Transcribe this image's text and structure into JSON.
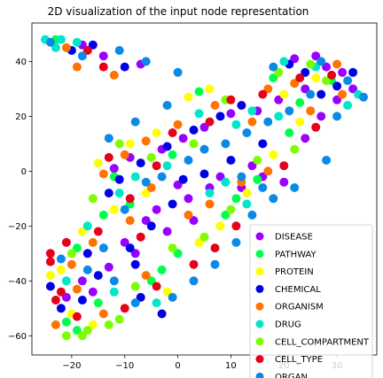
{
  "chart_data": {
    "type": "scatter",
    "title": "2D visualization of the input node representation",
    "xlabel": "",
    "ylabel": "",
    "xlim": [
      -27.5,
      37.5
    ],
    "ylim": [
      -67,
      54
    ],
    "xticks": [
      -20,
      -10,
      0,
      10,
      20,
      30
    ],
    "yticks": [
      -60,
      -40,
      -20,
      0,
      20,
      40
    ],
    "grid": false,
    "legend_position": "lower-right",
    "series": [
      {
        "name": "DISEASE",
        "color": "#9900ff",
        "points": [
          [
            22,
            41
          ],
          [
            26,
            42
          ],
          [
            28,
            38
          ],
          [
            31,
            36
          ],
          [
            24,
            30
          ],
          [
            19,
            26
          ],
          [
            15,
            22
          ],
          [
            10,
            21
          ],
          [
            5,
            16
          ],
          [
            1,
            12
          ],
          [
            -3,
            8
          ],
          [
            -9,
            5
          ],
          [
            -12,
            1
          ],
          [
            -18,
            46
          ],
          [
            -14,
            42
          ],
          [
            -7,
            39
          ],
          [
            8,
            -2
          ],
          [
            12,
            -6
          ],
          [
            3,
            -18
          ],
          [
            -2,
            -22
          ],
          [
            -8,
            -30
          ],
          [
            -13,
            -35
          ],
          [
            -18,
            -40
          ],
          [
            -21,
            -46
          ],
          [
            -4,
            -14
          ],
          [
            2,
            -10
          ],
          [
            6,
            -6
          ],
          [
            16,
            -2
          ],
          [
            20,
            -4
          ],
          [
            24,
            12
          ],
          [
            27,
            20
          ],
          [
            30,
            26
          ],
          [
            33,
            30
          ],
          [
            -16,
            -44
          ],
          [
            -10,
            -26
          ],
          [
            -6,
            -18
          ],
          [
            14,
            2
          ],
          [
            0,
            -5
          ]
        ]
      },
      {
        "name": "PATHWAY",
        "color": "#00ff4c",
        "points": [
          [
            18,
            34
          ],
          [
            23,
            25
          ],
          [
            4,
            29
          ],
          [
            -1,
            6
          ],
          [
            -12,
            -2
          ],
          [
            -14,
            -16
          ],
          [
            -19,
            -28
          ],
          [
            -15,
            -48
          ],
          [
            -19,
            -58
          ],
          [
            -21,
            -55
          ],
          [
            -5,
            -40
          ],
          [
            0,
            -30
          ],
          [
            9,
            -16
          ],
          [
            11,
            -10
          ],
          [
            15,
            -3
          ],
          [
            21,
            14
          ],
          [
            29,
            33
          ],
          [
            -23,
            48
          ],
          [
            -9,
            -12
          ],
          [
            -3,
            -36
          ]
        ]
      },
      {
        "name": "PROTEIN",
        "color": "#ffff00",
        "points": [
          [
            20,
            28
          ],
          [
            26,
            34
          ],
          [
            6,
            30
          ],
          [
            2,
            27
          ],
          [
            -4,
            14
          ],
          [
            -9,
            10
          ],
          [
            -15,
            3
          ],
          [
            -12,
            -14
          ],
          [
            -18,
            -22
          ],
          [
            -22,
            -36
          ],
          [
            -20,
            -52
          ],
          [
            -16,
            -56
          ],
          [
            -2,
            -44
          ],
          [
            4,
            -26
          ],
          [
            8,
            -20
          ],
          [
            13,
            -8
          ],
          [
            18,
            6
          ],
          [
            23,
            18
          ],
          [
            -6,
            -8
          ],
          [
            -24,
            -38
          ]
        ]
      },
      {
        "name": "CHEMICAL",
        "color": "#0000e6",
        "points": [
          [
            21,
            39
          ],
          [
            24,
            36
          ],
          [
            30,
            31
          ],
          [
            12,
            24
          ],
          [
            8,
            20
          ],
          [
            3,
            15
          ],
          [
            -2,
            9
          ],
          [
            -7,
            3
          ],
          [
            -11,
            -3
          ],
          [
            -13,
            -8
          ],
          [
            -20,
            44
          ],
          [
            -16,
            46
          ],
          [
            -10,
            38
          ],
          [
            -1,
            -12
          ],
          [
            -5,
            -20
          ],
          [
            -9,
            -28
          ],
          [
            -15,
            -38
          ],
          [
            -18,
            -47
          ],
          [
            -22,
            -50
          ],
          [
            -24,
            -42
          ],
          [
            -7,
            -46
          ],
          [
            -3,
            -52
          ],
          [
            1,
            -3
          ],
          [
            5,
            -1
          ],
          [
            10,
            4
          ],
          [
            16,
            10
          ],
          [
            27,
            28
          ],
          [
            33,
            36
          ],
          [
            -8,
            -34
          ],
          [
            -17,
            -30
          ]
        ]
      },
      {
        "name": "ORGANISM",
        "color": "#ff7300",
        "points": [
          [
            17,
            30
          ],
          [
            22,
            32
          ],
          [
            30,
            39
          ],
          [
            14,
            18
          ],
          [
            7,
            24
          ],
          [
            0,
            17
          ],
          [
            -6,
            11
          ],
          [
            -10,
            6
          ],
          [
            -14,
            -1
          ],
          [
            -21,
            45
          ],
          [
            -19,
            38
          ],
          [
            -12,
            35
          ],
          [
            -5,
            -6
          ],
          [
            -9,
            -18
          ],
          [
            -16,
            -26
          ],
          [
            -20,
            -34
          ],
          [
            -19,
            -43
          ],
          [
            -14,
            -52
          ],
          [
            -23,
            -56
          ],
          [
            -6,
            -38
          ],
          [
            2,
            -16
          ],
          [
            6,
            -12
          ],
          [
            12,
            -4
          ],
          [
            17,
            0
          ],
          [
            25,
            22
          ],
          [
            31,
            28
          ]
        ]
      },
      {
        "name": "DRUG",
        "color": "#00e6c8",
        "points": [
          [
            -25,
            48
          ],
          [
            -22,
            48
          ],
          [
            -19,
            47
          ],
          [
            -23,
            45
          ],
          [
            20,
            40
          ],
          [
            26,
            38
          ],
          [
            34,
            28
          ],
          [
            32,
            24
          ],
          [
            14,
            22
          ],
          [
            11,
            17
          ],
          [
            4,
            21
          ],
          [
            -2,
            2
          ],
          [
            -8,
            -2
          ],
          [
            9,
            -4
          ],
          [
            13,
            -12
          ],
          [
            -11,
            -8
          ],
          [
            -17,
            -20
          ],
          [
            -21,
            -40
          ],
          [
            -12,
            -44
          ],
          [
            -4,
            -48
          ],
          [
            6,
            -8
          ],
          [
            19,
            20
          ]
        ]
      },
      {
        "name": "CELL_COMPARTMENT",
        "color": "#7bff00",
        "points": [
          [
            19,
            36
          ],
          [
            25,
            39
          ],
          [
            28,
            33
          ],
          [
            9,
            26
          ],
          [
            3,
            10
          ],
          [
            -5,
            5
          ],
          [
            -11,
            10
          ],
          [
            -16,
            -10
          ],
          [
            -20,
            -30
          ],
          [
            -17,
            -58
          ],
          [
            -13,
            -56
          ],
          [
            -11,
            -54
          ],
          [
            -1,
            -28
          ],
          [
            5,
            -24
          ],
          [
            10,
            -14
          ],
          [
            15,
            4
          ],
          [
            22,
            8
          ],
          [
            -8,
            -42
          ],
          [
            -21,
            -60
          ],
          [
            -18,
            -60
          ]
        ]
      },
      {
        "name": "CELL_TYPE",
        "color": "#e6001a",
        "points": [
          [
            23,
            34
          ],
          [
            29,
            35
          ],
          [
            16,
            28
          ],
          [
            10,
            26
          ],
          [
            6,
            18
          ],
          [
            -1,
            14
          ],
          [
            -4,
            2
          ],
          [
            -13,
            5
          ],
          [
            -9,
            -10
          ],
          [
            -15,
            -22
          ],
          [
            -21,
            -26
          ],
          [
            -24,
            -33
          ],
          [
            -23,
            -47
          ],
          [
            -19,
            -53
          ],
          [
            -10,
            -50
          ],
          [
            -4,
            -42
          ],
          [
            3,
            -34
          ],
          [
            7,
            -28
          ],
          [
            11,
            -20
          ],
          [
            -17,
            44
          ],
          [
            -14,
            38
          ],
          [
            20,
            2
          ],
          [
            26,
            16
          ],
          [
            -7,
            -24
          ],
          [
            -24,
            -30
          ],
          [
            -22,
            -44
          ]
        ]
      },
      {
        "name": "ORGAN",
        "color": "#0a8ae6",
        "points": [
          [
            18,
            38
          ],
          [
            27,
            40
          ],
          [
            32,
            33
          ],
          [
            35,
            27
          ],
          [
            25,
            28
          ],
          [
            21,
            22
          ],
          [
            17,
            18
          ],
          [
            13,
            14
          ],
          [
            9,
            10
          ],
          [
            5,
            8
          ],
          [
            2,
            4
          ],
          [
            -3,
            -2
          ],
          [
            -6,
            -4
          ],
          [
            -10,
            -14
          ],
          [
            -14,
            -28
          ],
          [
            -17,
            -36
          ],
          [
            -22,
            -32
          ],
          [
            -12,
            -40
          ],
          [
            -8,
            -48
          ],
          [
            -1,
            -46
          ],
          [
            3,
            -40
          ],
          [
            7,
            -34
          ],
          [
            11,
            -26
          ],
          [
            14,
            -16
          ],
          [
            18,
            -10
          ],
          [
            22,
            -6
          ],
          [
            28,
            4
          ],
          [
            -24,
            47
          ],
          [
            -18,
            42
          ],
          [
            -11,
            44
          ],
          [
            -6,
            40
          ],
          [
            0,
            36
          ],
          [
            -2,
            24
          ],
          [
            -8,
            18
          ],
          [
            -13,
            12
          ],
          [
            30,
            20
          ],
          [
            12,
            -2
          ],
          [
            16,
            -6
          ]
        ]
      }
    ]
  }
}
